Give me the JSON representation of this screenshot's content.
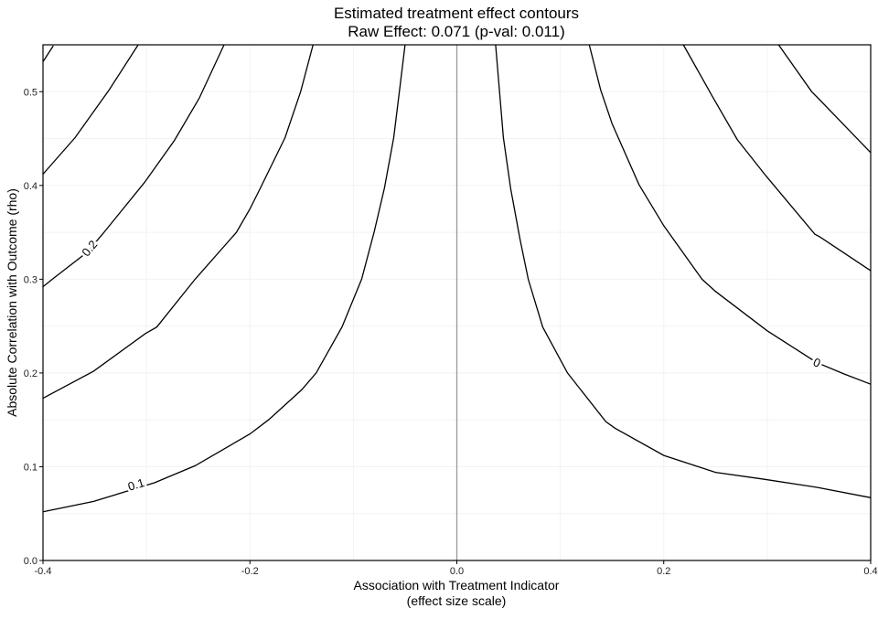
{
  "chart_data": {
    "type": "contour",
    "title": "Estimated treatment effect contours",
    "subtitle": "Raw Effect: 0.071 (p-val: 0.011)",
    "xlabel": "Association with Treatment Indicator",
    "xlabel_sub": "(effect size scale)",
    "ylabel": "Absolute Correlation with Outcome (rho)",
    "xlim": [
      -0.4,
      0.4
    ],
    "ylim": [
      0,
      0.55
    ],
    "x_ticks": [
      -0.4,
      -0.2,
      0.0,
      0.2,
      0.4
    ],
    "x_tick_labels": [
      "-0.4",
      "-0.2",
      "0.0",
      "0.2",
      "0.4"
    ],
    "y_ticks": [
      0,
      0.1,
      0.2,
      0.3,
      0.4,
      0.5
    ],
    "y_tick_labels": [
      "0.0",
      "0.1",
      "0.2",
      "0.3",
      "0.4",
      "0.5"
    ],
    "grid": true,
    "reference_line_x": 0,
    "colors": {
      "contour": "#000000",
      "reference": "#9a9a9a",
      "grid": "#f2f2f2"
    },
    "contours": [
      {
        "label": "0.1",
        "label_at": [
          -0.31,
          0.081
        ],
        "points": [
          [
            -0.05,
            0.55
          ],
          [
            -0.055,
            0.505
          ],
          [
            -0.061,
            0.451
          ],
          [
            -0.07,
            0.397
          ],
          [
            -0.08,
            0.35
          ],
          [
            -0.092,
            0.3
          ],
          [
            -0.111,
            0.249
          ],
          [
            -0.136,
            0.2
          ],
          [
            -0.15,
            0.182
          ],
          [
            -0.182,
            0.15
          ],
          [
            -0.2,
            0.135
          ],
          [
            -0.253,
            0.101
          ],
          [
            -0.292,
            0.083
          ],
          [
            -0.351,
            0.063
          ],
          [
            -0.4,
            0.052
          ]
        ]
      },
      {
        "points": [
          [
            -0.139,
            0.55
          ],
          [
            -0.151,
            0.5
          ],
          [
            -0.166,
            0.451
          ],
          [
            -0.19,
            0.397
          ],
          [
            -0.2,
            0.375
          ],
          [
            -0.213,
            0.35
          ],
          [
            -0.253,
            0.3
          ],
          [
            -0.29,
            0.249
          ],
          [
            -0.301,
            0.242
          ],
          [
            -0.351,
            0.202
          ],
          [
            -0.4,
            0.173
          ]
        ]
      },
      {
        "label": "0.2",
        "label_at": [
          -0.355,
          0.333
        ],
        "points": [
          [
            -0.225,
            0.55
          ],
          [
            -0.249,
            0.493
          ],
          [
            -0.273,
            0.448
          ],
          [
            -0.302,
            0.403
          ],
          [
            -0.341,
            0.35
          ],
          [
            -0.357,
            0.329
          ],
          [
            -0.391,
            0.3
          ],
          [
            -0.4,
            0.292
          ]
        ]
      },
      {
        "points": [
          [
            -0.308,
            0.55
          ],
          [
            -0.336,
            0.502
          ],
          [
            -0.369,
            0.451
          ],
          [
            -0.4,
            0.412
          ]
        ]
      },
      {
        "points": [
          [
            -0.39,
            0.549
          ],
          [
            -0.4,
            0.532
          ]
        ]
      },
      {
        "points": [
          [
            0.0375,
            0.55
          ],
          [
            0.045,
            0.451
          ],
          [
            0.052,
            0.397
          ],
          [
            0.061,
            0.343
          ],
          [
            0.069,
            0.3
          ],
          [
            0.083,
            0.249
          ],
          [
            0.107,
            0.2
          ],
          [
            0.144,
            0.148
          ],
          [
            0.153,
            0.141
          ],
          [
            0.2,
            0.112
          ],
          [
            0.25,
            0.094
          ],
          [
            0.295,
            0.087
          ],
          [
            0.348,
            0.078
          ],
          [
            0.4,
            0.067
          ]
        ]
      },
      {
        "label": "0",
        "label_at": [
          0.348,
          0.211
        ],
        "points": [
          [
            0.128,
            0.55
          ],
          [
            0.139,
            0.502
          ],
          [
            0.15,
            0.466
          ],
          [
            0.176,
            0.401
          ],
          [
            0.2,
            0.357
          ],
          [
            0.237,
            0.3
          ],
          [
            0.25,
            0.287
          ],
          [
            0.3,
            0.245
          ],
          [
            0.348,
            0.211
          ],
          [
            0.374,
            0.199
          ],
          [
            0.4,
            0.188
          ]
        ]
      },
      {
        "points": [
          [
            0.219,
            0.55
          ],
          [
            0.247,
            0.495
          ],
          [
            0.271,
            0.449
          ],
          [
            0.299,
            0.41
          ],
          [
            0.346,
            0.348
          ],
          [
            0.351,
            0.345
          ],
          [
            0.4,
            0.309
          ]
        ]
      },
      {
        "points": [
          [
            0.311,
            0.55
          ],
          [
            0.343,
            0.5
          ],
          [
            0.351,
            0.491
          ],
          [
            0.4,
            0.435
          ]
        ]
      }
    ]
  }
}
